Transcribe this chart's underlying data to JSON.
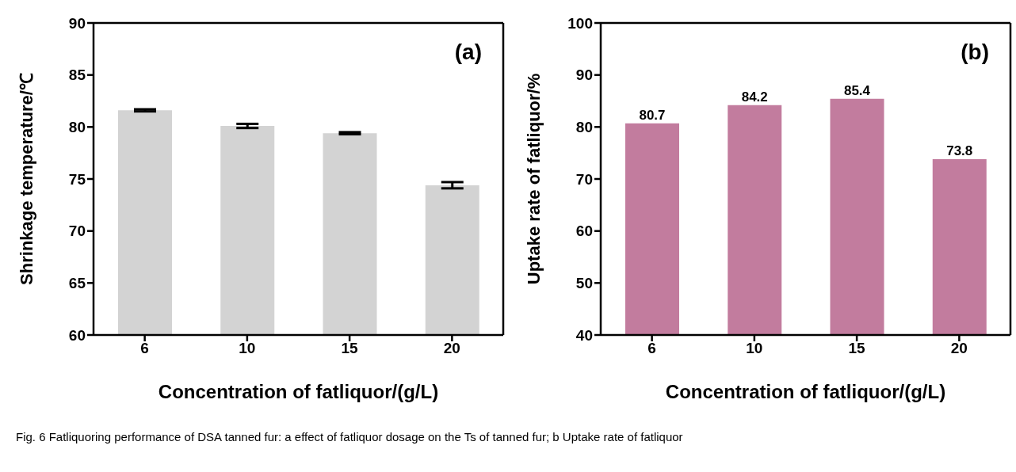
{
  "chart_data": [
    {
      "type": "bar",
      "xlabel": "Concentration of fatliquor/(g/L)",
      "ylabel": "Shrinkage temperature/℃",
      "categories": [
        "6",
        "10",
        "15",
        "20"
      ],
      "values": [
        81.6,
        80.1,
        79.4,
        74.4
      ],
      "errors": [
        0.1,
        0.2,
        0.1,
        0.3
      ],
      "color": "#d3d3d3",
      "ylim": [
        60,
        90
      ],
      "yticks": [
        60,
        65,
        70,
        75,
        80,
        85,
        90
      ],
      "grid": false,
      "legend": false,
      "annotations": [
        "(a)",
        "Fig. 6 Fatliquoring performance of DSA tanned fur: a effect of fatliquor dosage on the Ts of tanned fur; b Uptake rate of fatliquor"
      ]
    },
    {
      "type": "bar",
      "xlabel": "Concentration of fatliquor/(g/L)",
      "ylabel": "Uptake rate of fatliquor/%",
      "categories": [
        "6",
        "10",
        "15",
        "20"
      ],
      "values": [
        80.7,
        84.2,
        85.4,
        73.8
      ],
      "color": "#c27c9e",
      "ylim": [
        40,
        100
      ],
      "yticks": [
        40,
        50,
        60,
        70,
        80,
        90,
        100
      ],
      "grid": false,
      "legend": false,
      "data_labels": true,
      "annotations": [
        "(b)"
      ]
    }
  ]
}
